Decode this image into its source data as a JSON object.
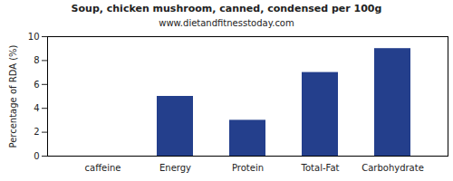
{
  "chart_data": {
    "type": "bar",
    "title": "Soup, chicken mushroom, canned, condensed per 100g",
    "subtitle": "www.dietandfitnesstoday.com",
    "y_label": "Percentage of RDA (%)",
    "categories": [
      "caffeine",
      "Energy",
      "Protein",
      "Total-Fat",
      "Carbohydrate"
    ],
    "values": [
      0,
      5,
      3,
      7,
      9
    ],
    "color": "#243f8c",
    "ylim": [
      0,
      10
    ],
    "yticks": [
      0,
      2,
      4,
      6,
      8,
      10
    ],
    "grid": false
  }
}
